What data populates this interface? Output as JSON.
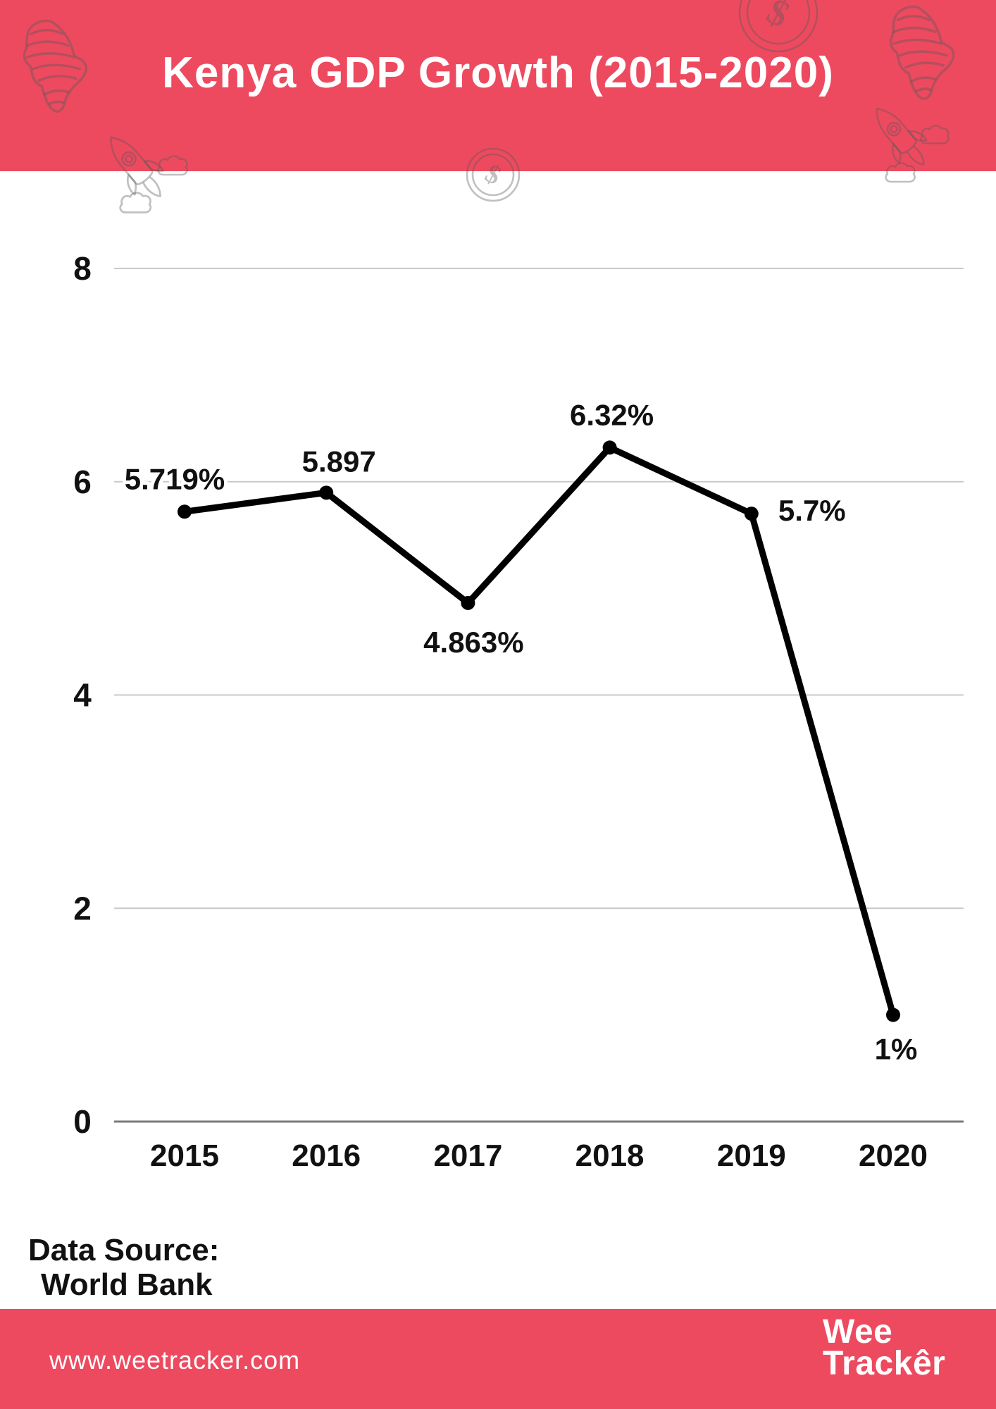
{
  "title": "Kenya GDP Growth (2015-2020)",
  "header": {
    "bg_color": "#ee4a5f"
  },
  "data_source": {
    "label": "Data Source:",
    "value": "World Bank"
  },
  "footer": {
    "url": "www.weetracker.com",
    "logo_line1": "Wee",
    "logo_line2": "Trackêr"
  },
  "decorations": {
    "icons": [
      "africa-map-icon",
      "rocket-icon",
      "dollar-coin-icon"
    ]
  },
  "colors": {
    "header_bg": "#ee4a5f",
    "line": "#000000",
    "gridline": "#c9c9c9",
    "axis_line": "#7a7a7a",
    "label_text": "#111111"
  },
  "chart_data": {
    "type": "line",
    "title": "Kenya GDP Growth (2015-2020)",
    "categories": [
      "2015",
      "2016",
      "2017",
      "2018",
      "2019",
      "2020"
    ],
    "values": [
      5.719,
      5.897,
      4.863,
      6.32,
      5.7,
      1
    ],
    "point_labels": [
      "5.719%",
      "5.897",
      "4.863%",
      "6.32%",
      "5.7%",
      "1%"
    ],
    "xlabel": "",
    "ylabel": "",
    "yticks": [
      0,
      2,
      4,
      6,
      8
    ],
    "ylim": [
      0,
      8
    ],
    "grid": true,
    "legend": "none",
    "series_color": "#000000"
  }
}
